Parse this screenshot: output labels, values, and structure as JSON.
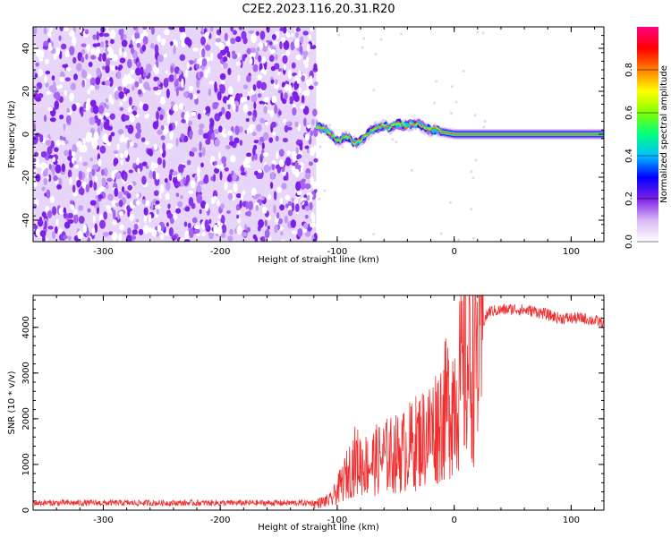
{
  "title": "C2E2.2023.116.20.31.R20",
  "chart_data": [
    {
      "type": "heatmap",
      "xlabel": "Height of straight line (km)",
      "ylabel": "Frequency (Hz)",
      "xlim": [
        -360,
        128
      ],
      "ylim": [
        -50,
        50
      ],
      "xticks": [
        -300,
        -200,
        -100,
        0,
        100
      ],
      "yticks": [
        -40,
        -20,
        0,
        20,
        40
      ],
      "noise_region_x": [
        -360,
        -118
      ],
      "signal_region_x": [
        -118,
        128
      ],
      "signal_trace": {
        "x": [
          -118,
          -110,
          -100,
          -92,
          -85,
          -78,
          -70,
          -62,
          -55,
          -48,
          -40,
          -32,
          -25,
          -18,
          -10,
          0,
          20,
          50,
          80,
          110,
          128
        ],
        "y": [
          4,
          2,
          -3,
          -1,
          -4,
          -2,
          2,
          4,
          3,
          5,
          4,
          5,
          3,
          2,
          1,
          0,
          0,
          0,
          0,
          0,
          0
        ]
      },
      "colorbar": {
        "label": "Normalized spectral amplitude",
        "range": [
          0.0,
          1.0
        ],
        "ticks": [
          "0.0",
          "0.2",
          "0.4",
          "0.6",
          "0.8"
        ],
        "colors": [
          "#ffffff",
          "#d9b8f5",
          "#7b1fe8",
          "#0000ff",
          "#00c0ff",
          "#00ff80",
          "#80ff00",
          "#ffff00",
          "#ff8000",
          "#ff0000",
          "#ff0080"
        ]
      },
      "grid": false
    },
    {
      "type": "line",
      "xlabel": "Height of straight line (km)",
      "ylabel": "SNR (10 * v/v)",
      "xlim": [
        -360,
        128
      ],
      "ylim": [
        0,
        4700
      ],
      "xticks": [
        -300,
        -200,
        -100,
        0,
        100
      ],
      "yticks": [
        0,
        1000,
        2000,
        3000,
        4000
      ],
      "series": [
        {
          "color": "#f03030",
          "envelope": {
            "x": [
              -360,
              -120,
              -105,
              -95,
              -85,
              -75,
              -60,
              -45,
              -30,
              -20,
              -10,
              0,
              10,
              20,
              30,
              50,
              70,
              90,
              110,
              128
            ],
            "y": [
              150,
              150,
              250,
              700,
              1200,
              1100,
              1300,
              1400,
              1700,
              1900,
              2300,
              2800,
              3400,
              3900,
              4350,
              4400,
              4350,
              4200,
              4200,
              4100
            ]
          }
        }
      ],
      "grid": false
    }
  ]
}
